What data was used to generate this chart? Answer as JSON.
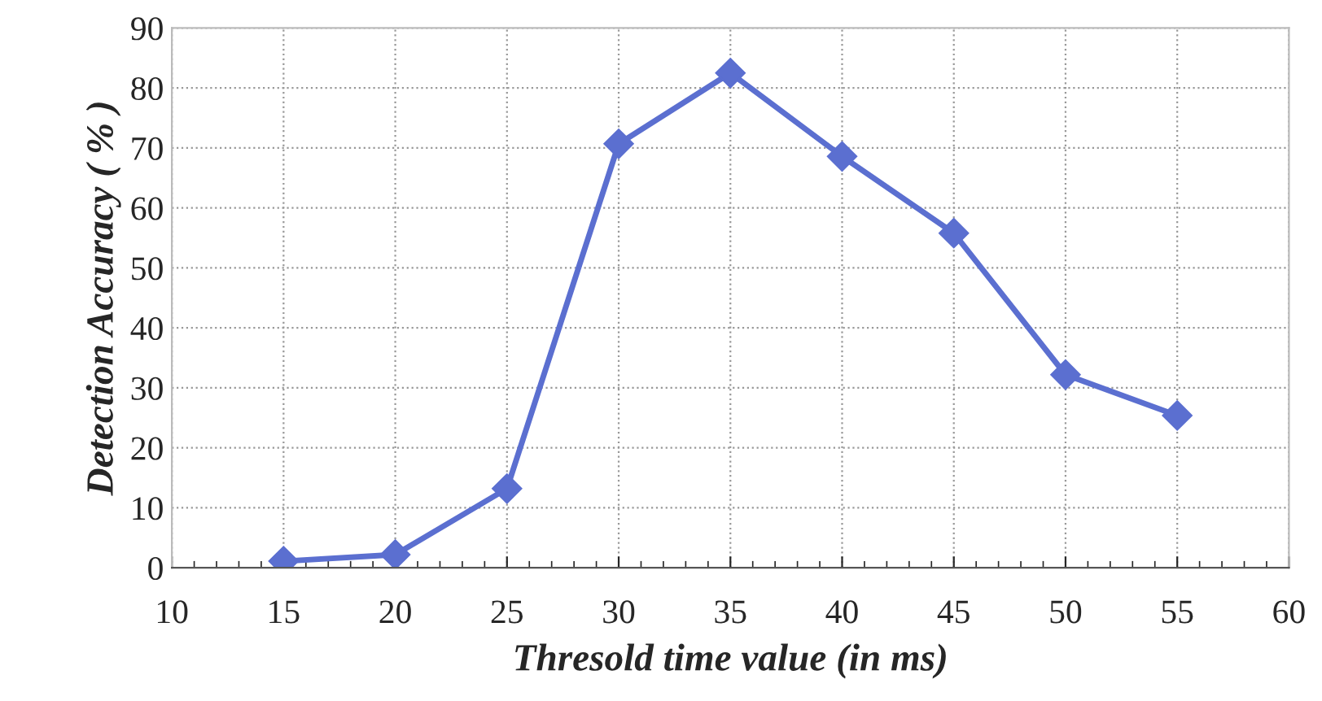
{
  "chart_data": {
    "type": "line",
    "xlabel": "Thresold time value (in ms)",
    "ylabel": "Detection Accuracy ( % )",
    "x": [
      15,
      20,
      25,
      30,
      35,
      40,
      45,
      50,
      55
    ],
    "series": [
      {
        "color": "#5b6fd0",
        "values": [
          1.1,
          2.2,
          13.2,
          70.7,
          82.5,
          68.6,
          55.8,
          32.2,
          25.4
        ]
      }
    ],
    "xlim": [
      10,
      60
    ],
    "xticks": [
      10,
      15,
      20,
      25,
      30,
      35,
      40,
      45,
      50,
      55,
      60
    ],
    "ylim": [
      0,
      90
    ],
    "yticks": [
      0,
      10,
      20,
      30,
      40,
      50,
      60,
      70,
      80,
      90
    ],
    "grid": true,
    "marker": "diamond",
    "line_style": "solid"
  }
}
